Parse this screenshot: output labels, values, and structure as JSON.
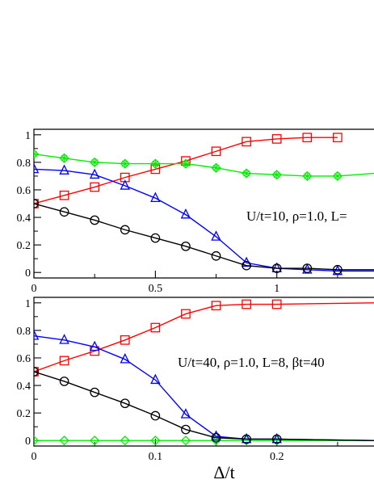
{
  "chart_data": [
    {
      "type": "line",
      "xlim": [
        0,
        1.4
      ],
      "ylim": [
        -0.04,
        1.04
      ],
      "x_ticks": [
        0,
        0.5,
        1
      ],
      "x_tick_labels": [
        "0",
        "0.5",
        "1"
      ],
      "y_ticks": [
        0,
        0.2,
        0.4,
        0.6,
        0.8,
        1
      ],
      "y_tick_labels": [
        "0",
        "0.2",
        "0.4",
        "0.6",
        "0.8",
        "1"
      ],
      "annotation": "U/t=10, ρ=1.0, L=",
      "grid": false,
      "series": [
        {
          "color": "#ff0000",
          "marker": "square",
          "x": [
            0,
            0.125,
            0.25,
            0.375,
            0.5,
            0.625,
            0.75,
            0.875,
            1.0,
            1.125,
            1.25
          ],
          "y": [
            0.5,
            0.56,
            0.62,
            0.69,
            0.75,
            0.81,
            0.88,
            0.95,
            0.97,
            0.98,
            0.98
          ]
        },
        {
          "color": "#00ee00",
          "marker": "diamond-cross",
          "x": [
            0,
            0.125,
            0.25,
            0.375,
            0.5,
            0.625,
            0.75,
            0.875,
            1.0,
            1.125,
            1.25,
            1.4
          ],
          "y": [
            0.86,
            0.83,
            0.8,
            0.79,
            0.79,
            0.79,
            0.76,
            0.72,
            0.71,
            0.7,
            0.7,
            0.72
          ]
        },
        {
          "color": "#0000ff",
          "marker": "triangle",
          "x": [
            0,
            0.125,
            0.25,
            0.375,
            0.5,
            0.625,
            0.75,
            0.875,
            1.0,
            1.125,
            1.25,
            1.4
          ],
          "y": [
            0.75,
            0.74,
            0.71,
            0.63,
            0.54,
            0.42,
            0.26,
            0.07,
            0.03,
            0.02,
            0.01,
            0.01
          ]
        },
        {
          "color": "#000000",
          "marker": "circle",
          "x": [
            0,
            0.125,
            0.25,
            0.375,
            0.5,
            0.625,
            0.75,
            0.875,
            1.0,
            1.125,
            1.25,
            1.4
          ],
          "y": [
            0.5,
            0.44,
            0.38,
            0.31,
            0.25,
            0.19,
            0.12,
            0.05,
            0.03,
            0.03,
            0.02,
            0.02
          ]
        }
      ]
    },
    {
      "type": "line",
      "xlim": [
        0,
        0.28
      ],
      "ylim": [
        -0.04,
        1.04
      ],
      "x_ticks": [
        0,
        0.1,
        0.2
      ],
      "x_tick_labels": [
        "0",
        "0.1",
        "0.2"
      ],
      "y_ticks": [
        0,
        0.2,
        0.4,
        0.6,
        0.8,
        1
      ],
      "y_tick_labels": [
        "0",
        "0.2",
        "0.4",
        "0.6",
        "0.8",
        "1"
      ],
      "xlabel": "Δ/t",
      "annotation": "U/t=40, ρ=1.0, L=8, βt=40",
      "grid": false,
      "series": [
        {
          "color": "#ff0000",
          "marker": "square",
          "x": [
            0,
            0.025,
            0.05,
            0.075,
            0.1,
            0.125,
            0.15,
            0.175,
            0.2,
            0.28
          ],
          "y": [
            0.5,
            0.58,
            0.65,
            0.73,
            0.82,
            0.92,
            0.98,
            0.99,
            0.99,
            1.0
          ]
        },
        {
          "color": "#00ee00",
          "marker": "diamond",
          "x": [
            0,
            0.025,
            0.05,
            0.075,
            0.1,
            0.125,
            0.15,
            0.175,
            0.2,
            0.28
          ],
          "y": [
            0.0,
            0.0,
            0.0,
            0.0,
            0.0,
            0.0,
            0.0,
            0.0,
            0.0,
            0.0
          ]
        },
        {
          "color": "#0000ff",
          "marker": "triangle",
          "x": [
            0,
            0.025,
            0.05,
            0.075,
            0.1,
            0.125,
            0.15,
            0.175,
            0.2,
            0.28
          ],
          "y": [
            0.76,
            0.73,
            0.68,
            0.59,
            0.44,
            0.19,
            0.03,
            0.01,
            0.01,
            0.0
          ]
        },
        {
          "color": "#000000",
          "marker": "circle",
          "x": [
            0,
            0.025,
            0.05,
            0.075,
            0.1,
            0.125,
            0.15,
            0.175,
            0.2,
            0.28
          ],
          "y": [
            0.5,
            0.43,
            0.35,
            0.27,
            0.18,
            0.08,
            0.02,
            0.01,
            0.01,
            0.0
          ]
        }
      ]
    }
  ]
}
